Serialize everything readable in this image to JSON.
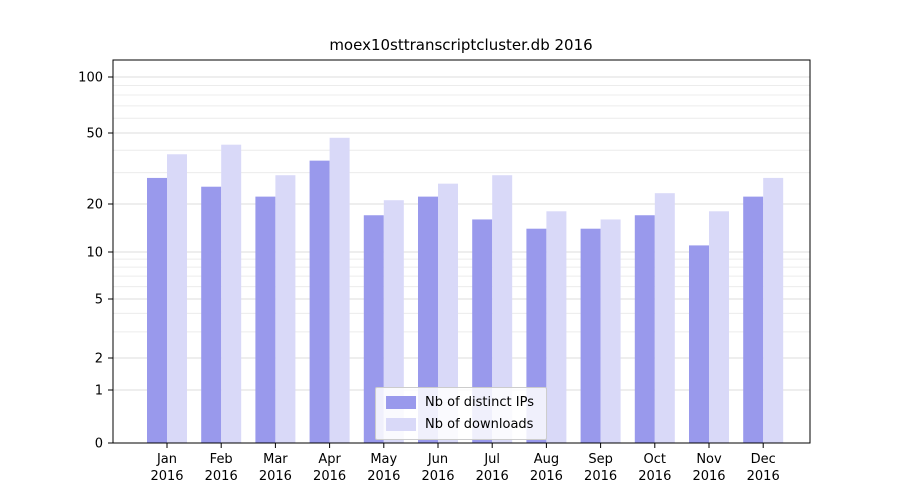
{
  "chart_data": {
    "type": "bar",
    "title": "moex10sttranscriptcluster.db 2016",
    "categories": [
      "Jan",
      "Feb",
      "Mar",
      "Apr",
      "May",
      "Jun",
      "Jul",
      "Aug",
      "Sep",
      "Oct",
      "Nov",
      "Dec"
    ],
    "x_sublabel": "2016",
    "series": [
      {
        "name": "Nb of distinct IPs",
        "color": "#9999ec",
        "values": [
          28,
          25,
          22,
          35,
          17,
          22,
          16,
          14,
          14,
          17,
          11,
          22
        ]
      },
      {
        "name": "Nb of downloads",
        "color": "#d9d9f8",
        "values": [
          38,
          43,
          29,
          47,
          21,
          26,
          29,
          18,
          16,
          23,
          18,
          28
        ]
      }
    ],
    "yticks": [
      0,
      1,
      2,
      5,
      10,
      20,
      50,
      100
    ],
    "ylim": [
      0,
      100
    ],
    "yscale": "symlog",
    "grid": true,
    "legend_position": "lower center"
  }
}
